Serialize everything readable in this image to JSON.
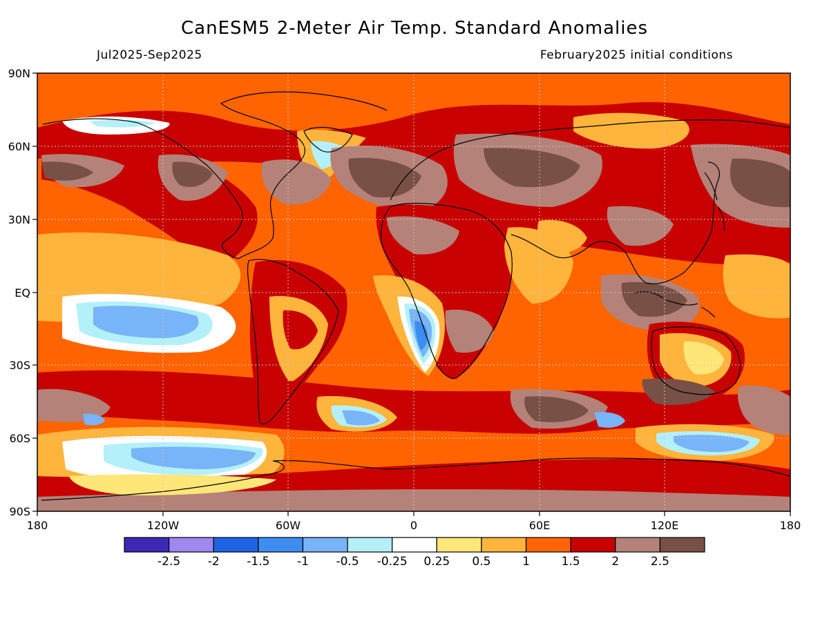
{
  "title": "CanESM5 2-Meter Air Temp. Standard Anomalies",
  "subtitle_left": "Jul2025-Sep2025",
  "subtitle_right": "February2025 initial conditions",
  "axes": {
    "lat_labels": [
      "90N",
      "60N",
      "30N",
      "EQ",
      "30S",
      "60S",
      "90S"
    ],
    "lon_labels": [
      "180",
      "120W",
      "60W",
      "0",
      "60E",
      "120E",
      "180"
    ]
  },
  "colorbar": {
    "colors": [
      "#3c28b4",
      "#a088f0",
      "#1e64e6",
      "#3c8ef0",
      "#78b4f8",
      "#b4f0fa",
      "#ffffff",
      "#ffe678",
      "#ffb43c",
      "#ff6400",
      "#c80000",
      "#b48278",
      "#785046"
    ],
    "labels": [
      "-2.5",
      "-2",
      "-1.5",
      "-1",
      "-0.5",
      "-0.25",
      "0.25",
      "0.5",
      "1",
      "1.5",
      "2",
      "2.5"
    ]
  },
  "map_colors": {
    "ocean_base": "#ff6400",
    "land_base": "#c80000",
    "warm_mid": "#ffb43c",
    "warm_light": "#ffe678",
    "neutral": "#ffffff",
    "cool_light": "#b4f0fa",
    "cool_mid": "#78b4f8",
    "cool": "#3c8ef0",
    "hot": "#b48278",
    "very_hot": "#785046",
    "coast": "#000000"
  }
}
